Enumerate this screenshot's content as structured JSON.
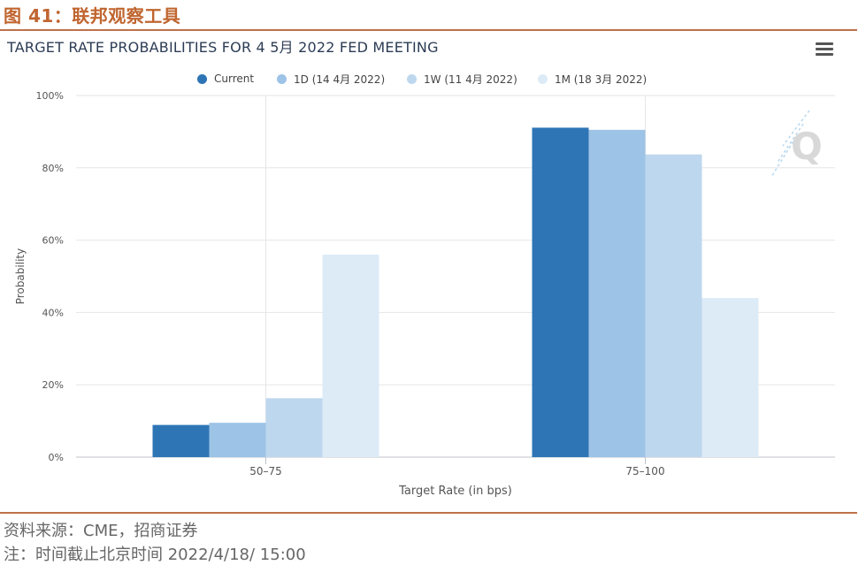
{
  "figure": {
    "caption": "图 41：联邦观察工具",
    "source_note": "资料来源：CME，招商证券",
    "time_note": "注：时间截止北京时间 2022/4/18/ 15:00"
  },
  "toolbar": {
    "menu_icon": "hamburger-menu-icon"
  },
  "watermark": {
    "icon": "q-logo-icon",
    "letter": "Q"
  },
  "colors": {
    "accent": "#c0652f",
    "series": [
      "#2e75b6",
      "#9dc3e6",
      "#bdd7ee",
      "#ddebf7"
    ]
  },
  "chart_data": {
    "type": "bar",
    "title": "TARGET RATE PROBABILITIES FOR 4 5月 2022 FED MEETING",
    "xlabel": "Target Rate (in bps)",
    "ylabel": "Probability",
    "categories": [
      "50-75",
      "75-100"
    ],
    "ylim": [
      0,
      100
    ],
    "yticks": [
      0,
      20,
      40,
      60,
      80,
      100
    ],
    "ytick_labels": [
      "0%",
      "20%",
      "40%",
      "60%",
      "80%",
      "100%"
    ],
    "grid": true,
    "legend_position": "top-center",
    "series": [
      {
        "name": "Current",
        "values": [
          8.9,
          91.1
        ]
      },
      {
        "name": "1D (14 4月 2022)",
        "values": [
          9.5,
          90.5
        ]
      },
      {
        "name": "1W (11 4月 2022)",
        "values": [
          16.3,
          83.7
        ]
      },
      {
        "name": "1M (18 3月 2022)",
        "values": [
          56.0,
          44.0
        ]
      }
    ]
  }
}
